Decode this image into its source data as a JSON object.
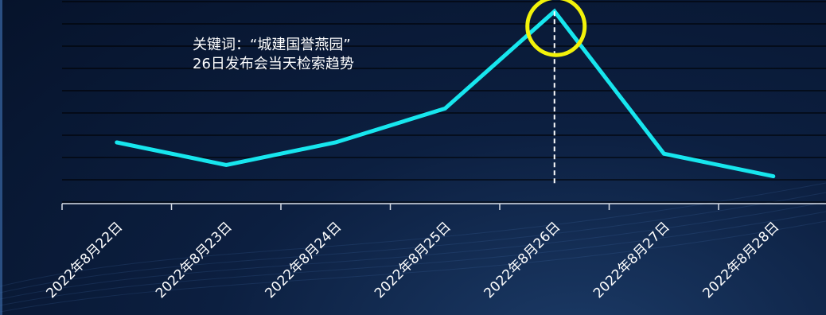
{
  "chart_data": {
    "type": "line",
    "categories": [
      "2022年8月22日",
      "2022年8月23日",
      "2022年8月24日",
      "2022年8月25日",
      "2022年8月26日",
      "2022年8月27日",
      "2022年8月28日"
    ],
    "series": [
      {
        "values": [
          21,
          11,
          21,
          36,
          79,
          16,
          6
        ]
      }
    ],
    "ylim": [
      -4,
      84
    ],
    "grid": true,
    "highlight": {
      "category": "2022年8月26日",
      "marker": "circle",
      "guide": "dashed-vertical"
    },
    "annotation": {
      "line1": "关键词：“城建国誉燕园”",
      "line2": "26日发布会当天检索趋势"
    },
    "title": "",
    "xlabel": "",
    "ylabel": ""
  },
  "colors": {
    "line": "#17e6ee",
    "highlight": "#f2f20a",
    "grid": "#000000",
    "axis": "#d8dde6",
    "text": "#ffffff"
  }
}
